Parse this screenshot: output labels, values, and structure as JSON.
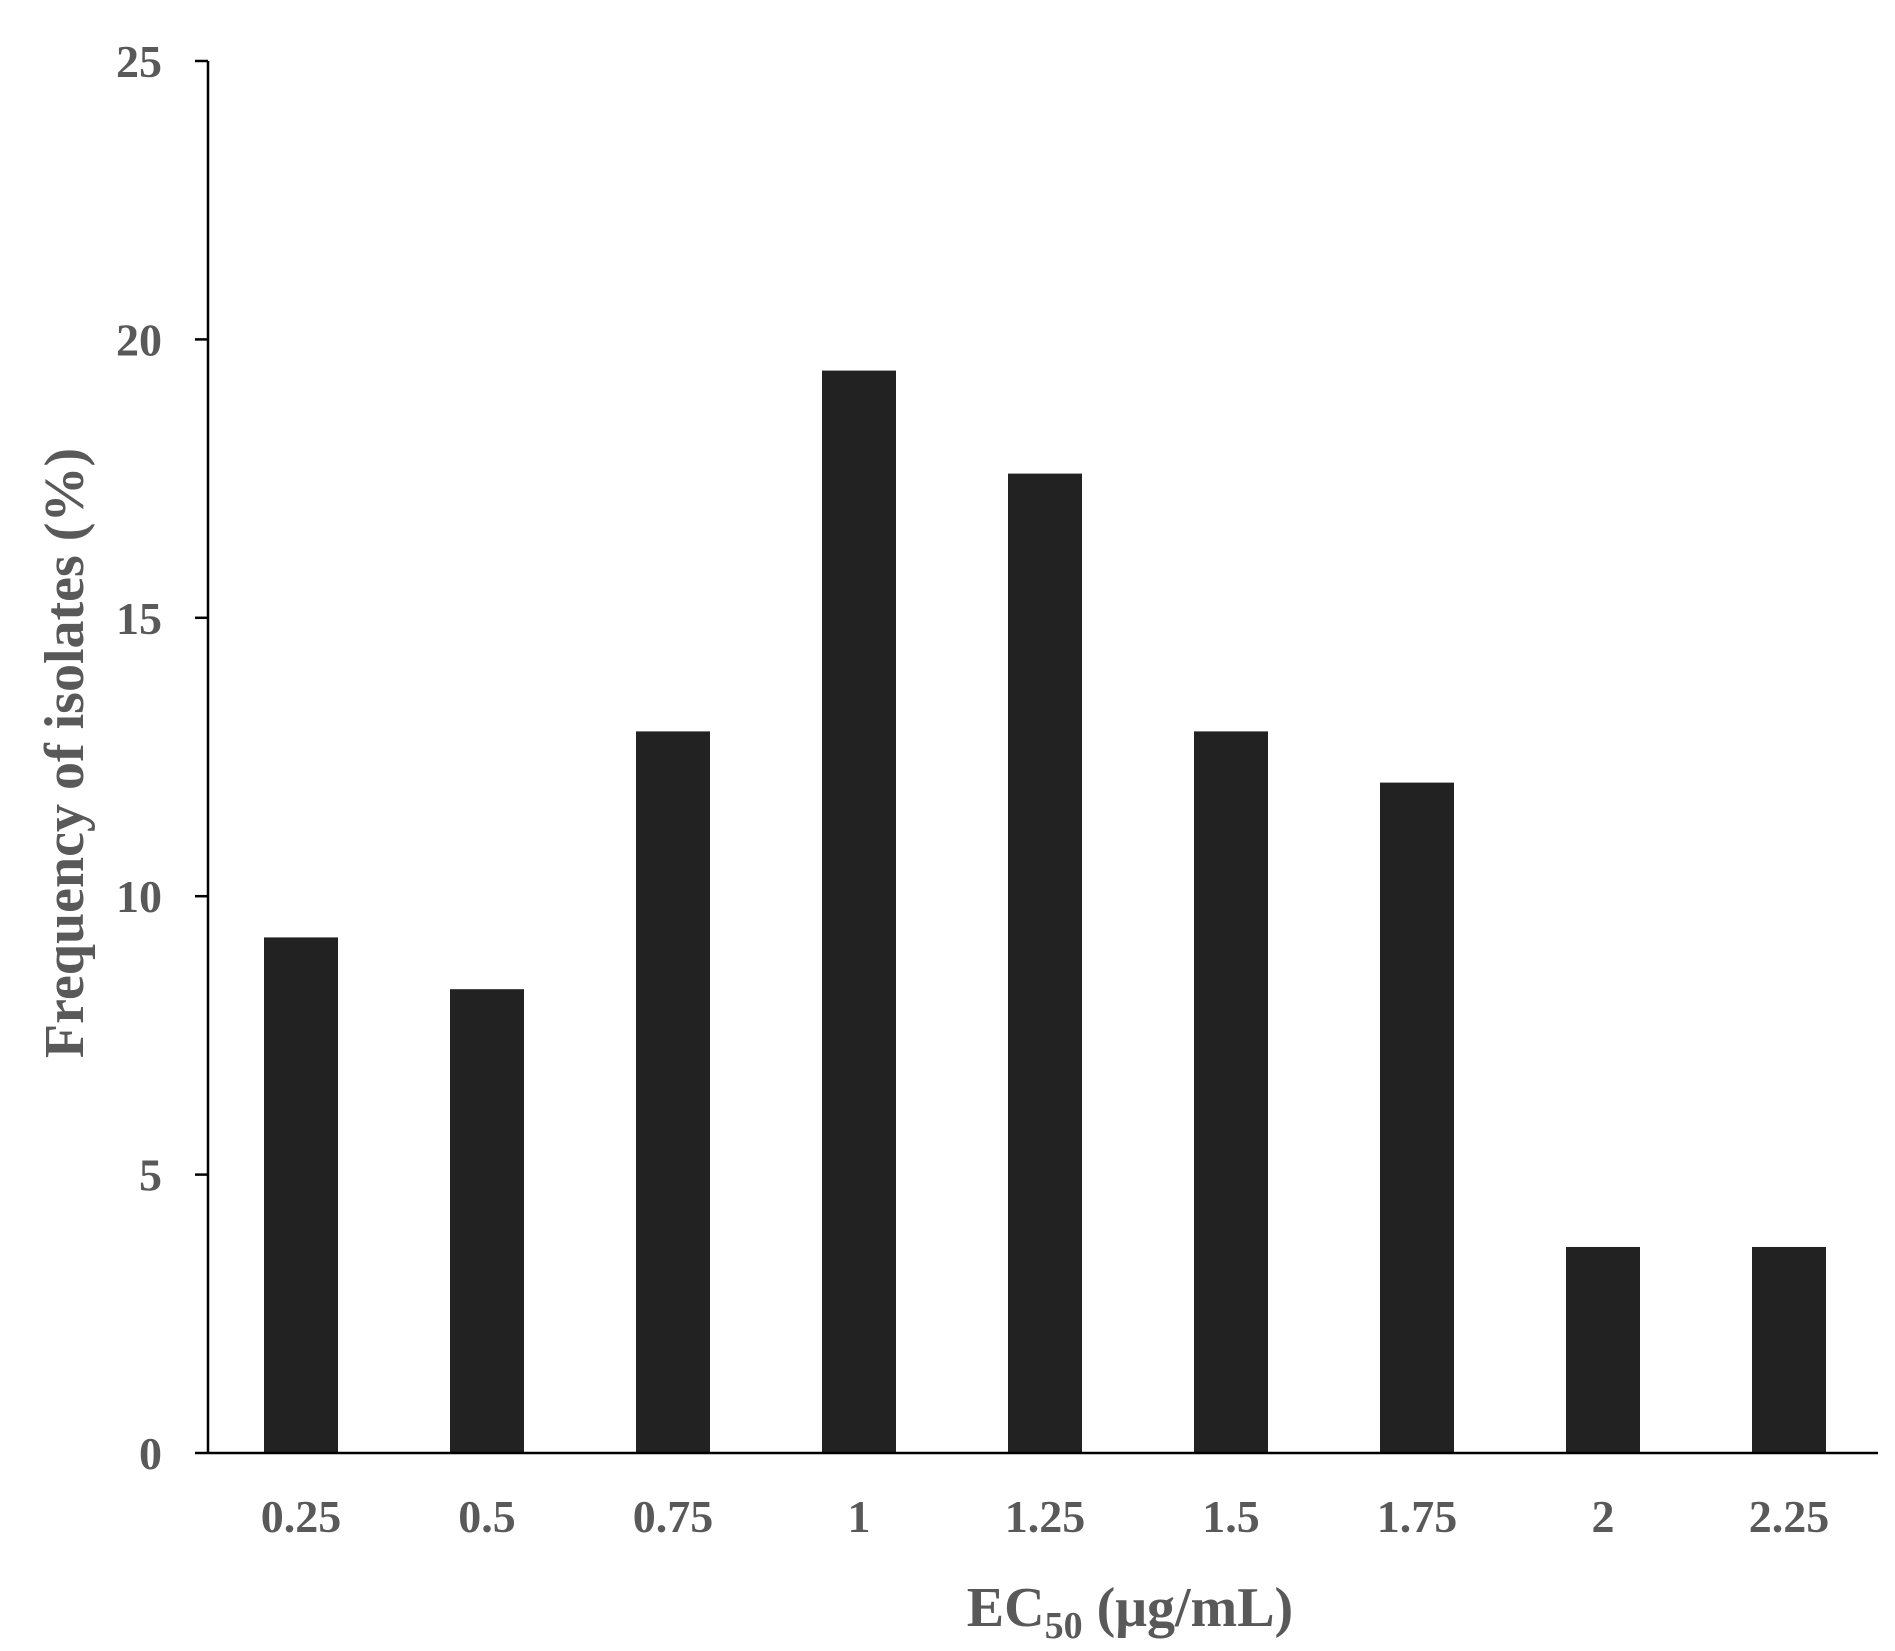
{
  "chart_data": {
    "type": "bar",
    "title": "",
    "categories": [
      "0.25",
      "0.5",
      "0.75",
      "1",
      "1.25",
      "1.5",
      "1.75",
      "2",
      "2.25"
    ],
    "values": [
      9.26,
      8.33,
      12.96,
      19.44,
      17.59,
      12.96,
      12.04,
      3.7,
      3.7
    ],
    "xlabel": {
      "main": "EC",
      "subscript": "50",
      "suffix": " (μg/mL)"
    },
    "ylabel": "Frequency of isolates (%)",
    "ylim": [
      0,
      25
    ],
    "yticks": [
      "0",
      "5",
      "10",
      "15",
      "20",
      "25"
    ],
    "grid": false,
    "legend": "none",
    "colors": {
      "bar": "#222222",
      "axis": "#000000",
      "text": "#595959"
    }
  }
}
